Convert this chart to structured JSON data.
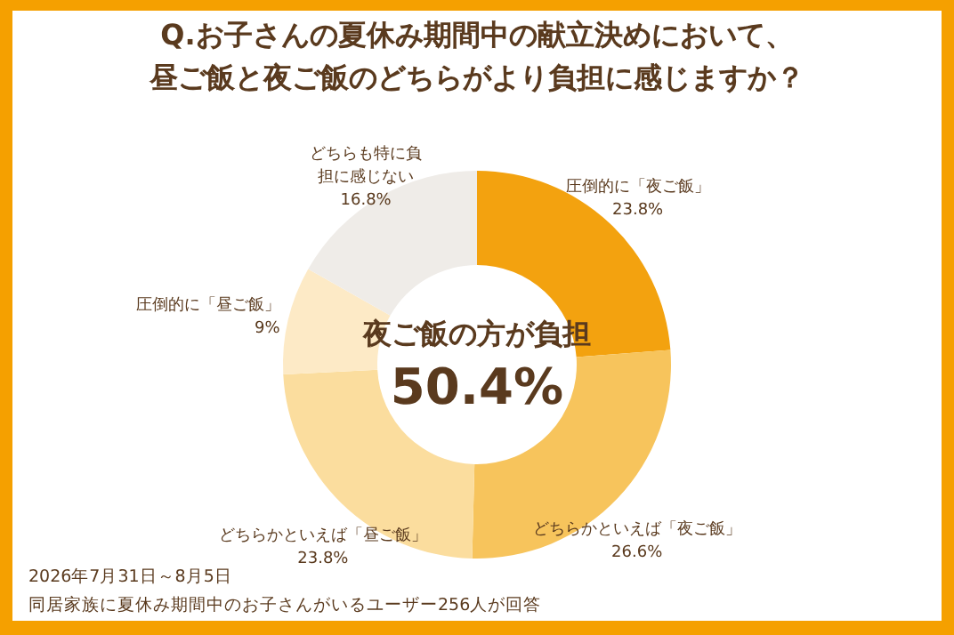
{
  "chart_data": {
    "type": "donut",
    "title": "Q.お子さんの夏休み期間中の献立決めにおいて、昼ご飯と夜ご飯のどちらがより負担に感じますか？",
    "categories": [
      "圧倒的に「夜ご飯」",
      "どちらかといえば「夜ご飯」",
      "どちらかといえば「昼ご飯」",
      "圧倒的に「昼ご飯」",
      "どちらも特に負担に感じない"
    ],
    "values": [
      23.8,
      26.6,
      23.8,
      9,
      16.8
    ],
    "colors": [
      "#f3a20f",
      "#f7c45c",
      "#fbdd9e",
      "#fdeac6",
      "#efece8"
    ],
    "value_labels": [
      "23.8%",
      "26.6%",
      "23.8%",
      "9%",
      "16.8%"
    ],
    "annotations": [
      "夜ご飯の方が負担",
      "50.4%",
      "2026年7月31日～8月5日",
      "同居家族に夏休み期間中のお子さんがいるユーザー256人が回答"
    ]
  }
}
